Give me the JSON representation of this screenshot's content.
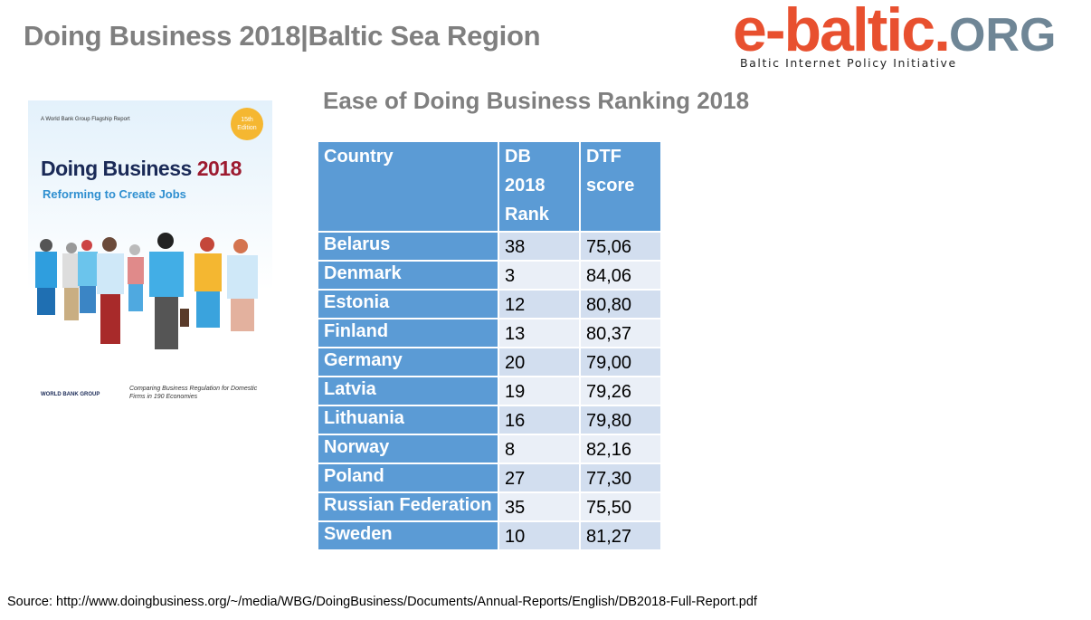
{
  "header": {
    "title": "Doing Business 2018|Baltic Sea Region"
  },
  "logo": {
    "main": "e-baltic.",
    "org": "ORG",
    "tagline": "Baltic Internet Policy Initiative"
  },
  "cover": {
    "flagship": "A World Bank Group Flagship Report",
    "badge": "15th Edition",
    "title_a": "Doing Business ",
    "title_b": "2018",
    "subtitle": "Reforming to Create Jobs",
    "tagline": "Comparing Business Regulation for Domestic Firms in 190 Economies",
    "publisher": "WORLD BANK GROUP"
  },
  "table": {
    "title": "Ease of Doing Business Ranking 2018",
    "headers": [
      "Country",
      "DB 2018 Rank",
      "DTF score"
    ],
    "rows": [
      [
        "Belarus",
        "38",
        "75,06"
      ],
      [
        "Denmark",
        "3",
        "84,06"
      ],
      [
        "Estonia",
        "12",
        "80,80"
      ],
      [
        "Finland",
        "13",
        "80,37"
      ],
      [
        "Germany",
        "20",
        "79,00"
      ],
      [
        "Latvia",
        "19",
        "79,26"
      ],
      [
        "Lithuania",
        "16",
        "79,80"
      ],
      [
        "Norway",
        "8",
        "82,16"
      ],
      [
        "Poland",
        "27",
        "77,30"
      ],
      [
        "Russian Federation",
        "35",
        "75,50"
      ],
      [
        "Sweden",
        "10",
        "81,27"
      ]
    ]
  },
  "colors": {
    "header": "#5b9bd5",
    "row_odd": "#d2deef",
    "row_even": "#eaeff7",
    "logo_red": "#e8502f",
    "logo_grey": "#6f8696"
  },
  "footer": {
    "source": "Source: http://www.doingbusiness.org/~/media/WBG/DoingBusiness/Documents/Annual-Reports/English/DB2018-Full-Report.pdf"
  }
}
